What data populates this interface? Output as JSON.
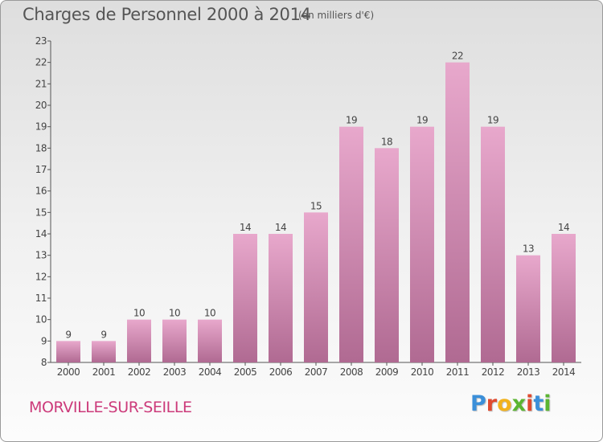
{
  "header": {
    "title": "Charges de Personnel 2000 à 2014",
    "subtitle": "(en milliers d'€)"
  },
  "footer": {
    "commune": "MORVILLE-SUR-SEILLE",
    "logo_letters": [
      "P",
      "r",
      "o",
      "x",
      "i",
      "t",
      "i"
    ],
    "logo_colors": [
      "#3b8fd9",
      "#e04a2f",
      "#f2b21c",
      "#5bb531",
      "#e04a2f",
      "#3b8fd9",
      "#5bb531"
    ]
  },
  "chart_data": {
    "type": "bar",
    "categories": [
      "2000",
      "2001",
      "2002",
      "2003",
      "2004",
      "2005",
      "2006",
      "2007",
      "2008",
      "2009",
      "2010",
      "2011",
      "2012",
      "2013",
      "2014"
    ],
    "values": [
      9,
      9,
      10,
      10,
      10,
      14,
      14,
      15,
      19,
      18,
      19,
      22,
      19,
      13,
      14
    ],
    "title": "Charges de Personnel 2000 à 2014",
    "ylim": [
      8,
      23
    ],
    "yticks": [
      8,
      9,
      10,
      11,
      12,
      13,
      14,
      15,
      16,
      17,
      18,
      19,
      20,
      21,
      22,
      23
    ],
    "grid": false,
    "bar_color_top": "#e8a8cc",
    "bar_color_bottom": "#b06a92",
    "data_labels": true
  }
}
